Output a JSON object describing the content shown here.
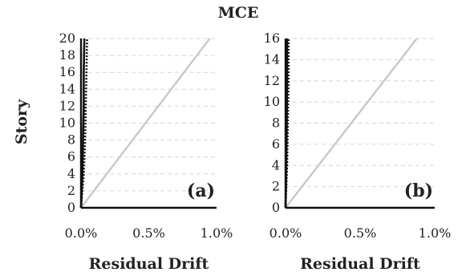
{
  "figure": {
    "title": "MCE",
    "ylabel": "Story"
  },
  "chart_data": [
    {
      "type": "line",
      "panel_label": "(a)",
      "xlabel": "Residual Drift",
      "ylabel": "Story",
      "xlim": [
        0,
        1.0
      ],
      "ylim": [
        0,
        20
      ],
      "x_ticks": [
        "0.0%",
        "0.5%",
        "1.0%"
      ],
      "y_ticks": [
        "0",
        "2",
        "4",
        "6",
        "8",
        "10",
        "12",
        "14",
        "16",
        "18",
        "20"
      ],
      "grid": "horizontal-dashed",
      "series": [
        {
          "style": "limit",
          "color": "#c8c8c8",
          "points": [
            [
              0,
              0
            ],
            [
              0.95,
              20
            ]
          ]
        },
        {
          "style": "dotted",
          "color": "#111111",
          "points": [
            [
              0,
              0
            ],
            [
              0.02,
              4
            ],
            [
              0.03,
              8
            ],
            [
              0.035,
              12
            ],
            [
              0.04,
              16
            ],
            [
              0.045,
              20
            ]
          ]
        },
        {
          "style": "solid",
          "color": "#111111",
          "points": [
            [
              0,
              0
            ],
            [
              0.01,
              4
            ],
            [
              0.015,
              8
            ],
            [
              0.02,
              12
            ],
            [
              0.02,
              16
            ],
            [
              0.025,
              20
            ]
          ]
        }
      ]
    },
    {
      "type": "line",
      "panel_label": "(b)",
      "xlabel": "Residual Drift",
      "ylabel": "",
      "xlim": [
        0,
        1.0
      ],
      "ylim": [
        0,
        16
      ],
      "x_ticks": [
        "0.0%",
        "0.5%",
        "1.0%"
      ],
      "y_ticks": [
        "0",
        "2",
        "4",
        "6",
        "8",
        "10",
        "12",
        "14",
        "16"
      ],
      "grid": "horizontal-dashed",
      "series": [
        {
          "style": "limit",
          "color": "#c8c8c8",
          "points": [
            [
              0,
              0
            ],
            [
              0.88,
              16
            ]
          ]
        },
        {
          "style": "dotted",
          "color": "#111111",
          "points": [
            [
              0,
              0
            ],
            [
              0.01,
              4
            ],
            [
              0.015,
              8
            ],
            [
              0.02,
              12
            ],
            [
              0.02,
              16
            ]
          ]
        },
        {
          "style": "solid",
          "color": "#111111",
          "points": [
            [
              0,
              0
            ],
            [
              0.005,
              4
            ],
            [
              0.008,
              8
            ],
            [
              0.01,
              12
            ],
            [
              0.01,
              16
            ]
          ]
        }
      ]
    }
  ]
}
